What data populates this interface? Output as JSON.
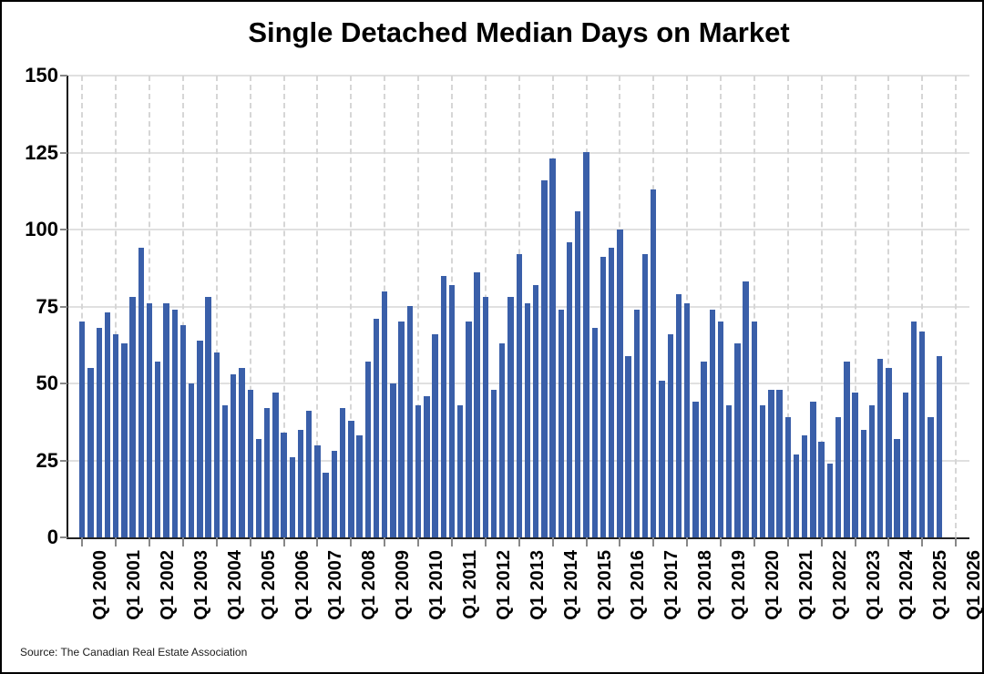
{
  "title": "Single Detached Median Days on Market",
  "source": "Source: The Canadian Real Estate Association",
  "colors": {
    "bar": "#3a5fa9",
    "h_grid": "#e0e0e0",
    "v_grid_dashed": "#d6d6d6",
    "axis": "#1a1a1a",
    "tick": "#888888"
  },
  "chart_data": {
    "type": "bar",
    "title": "Single Detached Median Days on Market",
    "xlabel": "",
    "ylabel": "",
    "ylim": [
      0,
      150
    ],
    "y_ticks": [
      0,
      25,
      50,
      75,
      100,
      125,
      150
    ],
    "grid": "horizontal solid gray; vertical dashed gray at yearly ticks",
    "legend": "none",
    "frequency": "quarterly",
    "start": "Q1 2000",
    "end": "Q3 2025",
    "x_tick_labels": [
      "Q1 2000",
      "Q1 2001",
      "Q1 2002",
      "Q1 2003",
      "Q1 2004",
      "Q1 2005",
      "Q1 2006",
      "Q1 2007",
      "Q1 2008",
      "Q1 2009",
      "Q1 2010",
      "Q1 2011",
      "Q1 2012",
      "Q1 2013",
      "Q1 2014",
      "Q1 2015",
      "Q1 2016",
      "Q1 2017",
      "Q1 2018",
      "Q1 2019",
      "Q1 2020",
      "Q1 2021",
      "Q1 2022",
      "Q1 2023",
      "Q1 2024",
      "Q1 2025",
      "Q1 2026"
    ],
    "values": [
      70,
      55,
      68,
      73,
      66,
      63,
      78,
      94,
      76,
      57,
      76,
      74,
      69,
      50,
      64,
      78,
      60,
      43,
      53,
      55,
      48,
      32,
      42,
      47,
      34,
      26,
      35,
      41,
      30,
      21,
      28,
      42,
      38,
      33,
      57,
      71,
      80,
      50,
      70,
      75,
      43,
      46,
      66,
      85,
      82,
      43,
      70,
      86,
      78,
      48,
      63,
      78,
      92,
      76,
      82,
      116,
      123,
      74,
      96,
      106,
      125,
      68,
      91,
      94,
      100,
      59,
      74,
      92,
      113,
      51,
      66,
      79,
      76,
      44,
      57,
      74,
      70,
      43,
      63,
      83,
      70,
      43,
      48,
      48,
      39,
      27,
      33,
      44,
      31,
      24,
      39,
      57,
      47,
      35,
      43,
      58,
      55,
      32,
      47,
      70,
      67,
      39,
      59
    ]
  }
}
